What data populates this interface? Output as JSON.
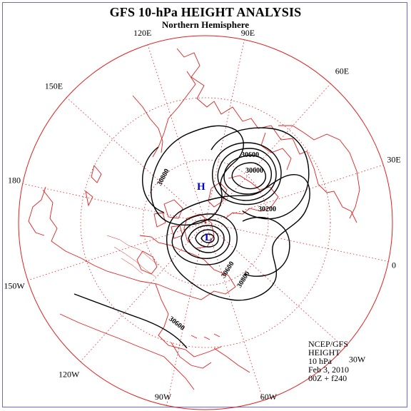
{
  "title": "GFS 10-hPa HEIGHT ANALYSIS",
  "subtitle": "Northern Hemisphere",
  "longitude_labels": [
    {
      "name": "90E",
      "lon": 90
    },
    {
      "name": "60E",
      "lon": 60
    },
    {
      "name": "30E",
      "lon": 30
    },
    {
      "name": "0",
      "lon": 0
    },
    {
      "name": "30W",
      "lon": -30
    },
    {
      "name": "60W",
      "lon": -60
    },
    {
      "name": "90W",
      "lon": -90
    },
    {
      "name": "120W",
      "lon": -120
    },
    {
      "name": "150W",
      "lon": -150
    },
    {
      "name": "180",
      "lon": 180
    },
    {
      "name": "150E",
      "lon": 150
    },
    {
      "name": "120E",
      "lon": 120
    }
  ],
  "contour_labels": [
    "30600",
    "30000",
    "30200",
    "30800",
    "30600",
    "30800",
    "30600"
  ],
  "centers": [
    {
      "name": "high",
      "symbol": "H",
      "color": "#0000cc"
    },
    {
      "name": "low",
      "symbol": "L",
      "color": "#0000cc"
    }
  ],
  "info": {
    "line1": "NCEP/GFS",
    "line2": "HEIGHT",
    "line3": "10 hPa",
    "line4": "Feb 3, 2010",
    "line5": "00Z + f240"
  },
  "colors": {
    "grid": "#e02020",
    "coastline": "#e02020",
    "contour": "#000000",
    "frame": "#6b6bc8"
  }
}
